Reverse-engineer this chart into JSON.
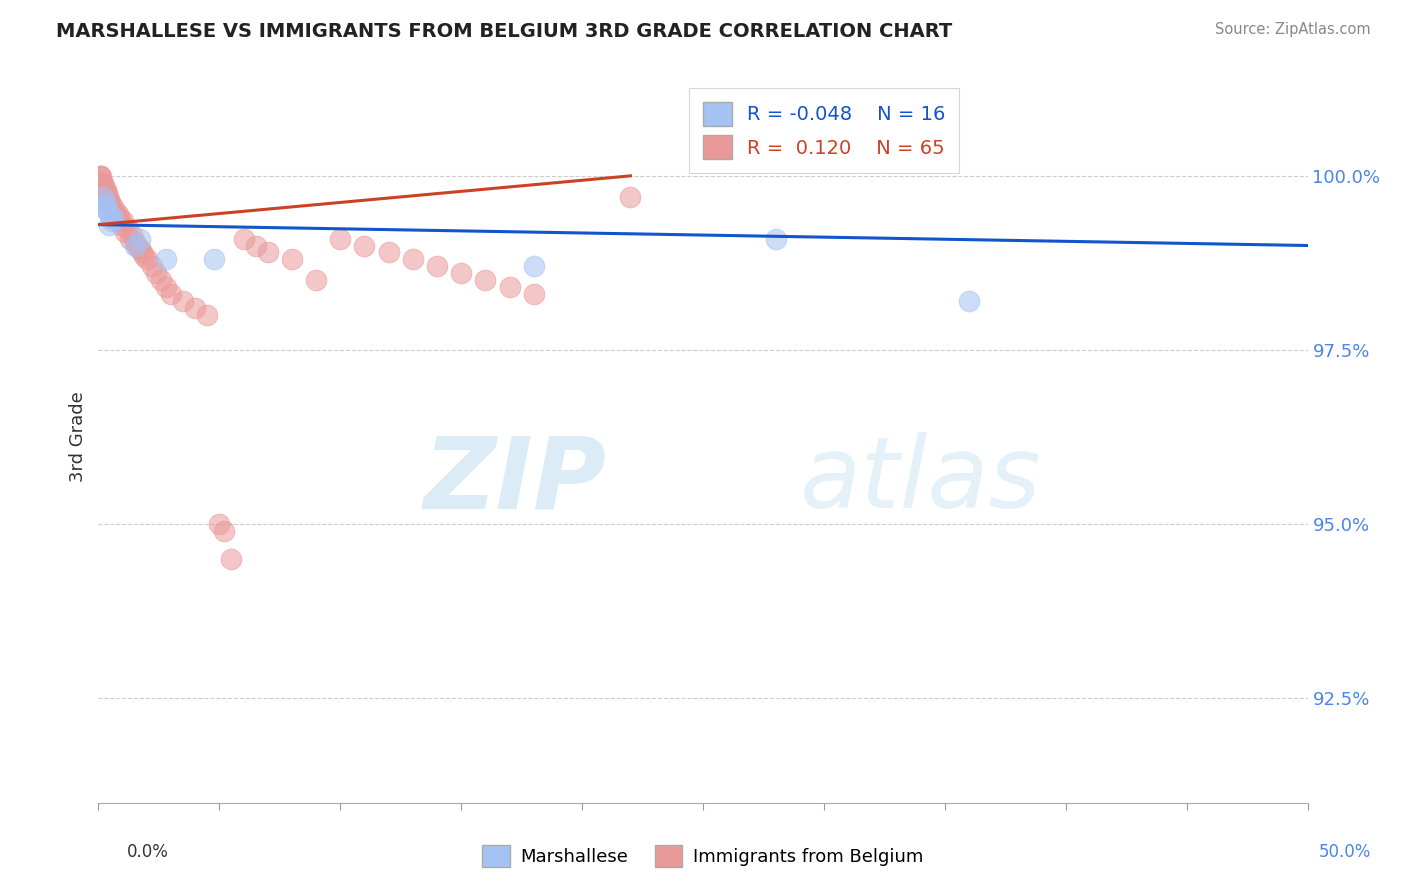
{
  "title": "MARSHALLESE VS IMMIGRANTS FROM BELGIUM 3RD GRADE CORRELATION CHART",
  "source": "Source: ZipAtlas.com",
  "ylabel": "3rd Grade",
  "xlim": [
    0.0,
    50.0
  ],
  "ylim": [
    91.0,
    101.5
  ],
  "yticks": [
    92.5,
    95.0,
    97.5,
    100.0
  ],
  "legend_blue_R": "-0.048",
  "legend_blue_N": "16",
  "legend_pink_R": " 0.120",
  "legend_pink_N": "65",
  "blue_color": "#a4c2f4",
  "pink_color": "#ea9999",
  "blue_line_color": "#1155cc",
  "pink_line_color": "#cc4125",
  "blue_scatter_x": [
    0.2,
    0.4,
    0.5,
    0.6,
    1.5,
    1.7,
    2.8,
    4.8,
    28.0,
    36.0,
    0.3,
    0.35,
    0.45,
    18.0,
    0.25,
    0.55
  ],
  "blue_scatter_y": [
    99.7,
    99.5,
    99.4,
    99.4,
    99.0,
    99.1,
    98.8,
    98.8,
    99.1,
    98.2,
    99.6,
    99.5,
    99.3,
    98.7,
    99.55,
    99.35
  ],
  "pink_scatter_x": [
    0.05,
    0.08,
    0.1,
    0.12,
    0.15,
    0.18,
    0.2,
    0.22,
    0.25,
    0.28,
    0.3,
    0.32,
    0.35,
    0.38,
    0.4,
    0.42,
    0.45,
    0.48,
    0.5,
    0.55,
    0.6,
    0.65,
    0.7,
    0.75,
    0.8,
    0.85,
    0.9,
    0.95,
    1.0,
    1.1,
    1.2,
    1.3,
    1.4,
    1.5,
    1.6,
    1.7,
    1.8,
    1.9,
    2.0,
    2.2,
    2.4,
    2.6,
    2.8,
    3.0,
    3.5,
    4.0,
    4.5,
    5.0,
    5.5,
    6.0,
    6.5,
    7.0,
    8.0,
    9.0,
    10.0,
    11.0,
    12.0,
    13.0,
    14.0,
    15.0,
    16.0,
    17.0,
    18.0,
    22.0,
    5.2
  ],
  "pink_scatter_y": [
    100.0,
    100.0,
    99.9,
    100.0,
    99.9,
    99.9,
    99.85,
    99.8,
    99.85,
    99.75,
    99.8,
    99.7,
    99.75,
    99.65,
    99.7,
    99.6,
    99.65,
    99.55,
    99.6,
    99.5,
    99.55,
    99.45,
    99.5,
    99.4,
    99.45,
    99.35,
    99.4,
    99.3,
    99.35,
    99.2,
    99.25,
    99.1,
    99.15,
    99.05,
    99.0,
    98.95,
    98.9,
    98.85,
    98.8,
    98.7,
    98.6,
    98.5,
    98.4,
    98.3,
    98.2,
    98.1,
    98.0,
    95.0,
    94.5,
    99.1,
    99.0,
    98.9,
    98.8,
    98.5,
    99.1,
    99.0,
    98.9,
    98.8,
    98.7,
    98.6,
    98.5,
    98.4,
    98.3,
    99.7,
    94.9
  ],
  "blue_line_x0": 0.0,
  "blue_line_x1": 50.0,
  "blue_line_y0": 99.3,
  "blue_line_y1": 99.0,
  "pink_line_x0": 0.0,
  "pink_line_x1": 22.0,
  "pink_line_y0": 99.3,
  "pink_line_y1": 100.0,
  "watermark_zip": "ZIP",
  "watermark_atlas": "atlas",
  "background_color": "#ffffff",
  "grid_color": "#cccccc",
  "ytick_color": "#4a86e8",
  "xtick_color": "#4a86e8"
}
